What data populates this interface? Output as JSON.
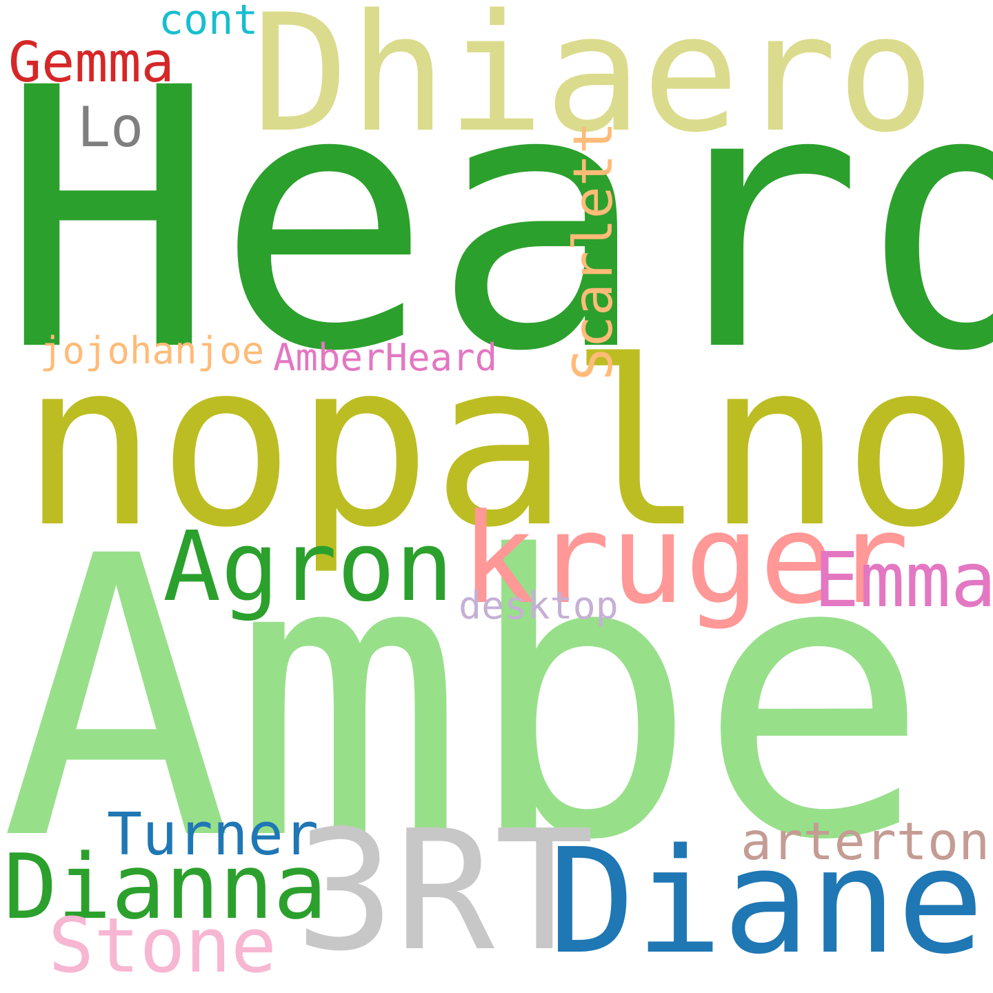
{
  "words": {
    "heard": {
      "text": "Heard",
      "color": "#2ca02c"
    },
    "amber": {
      "text": "Amber",
      "color": "#98df8a"
    },
    "nopalnop": {
      "text": "nopalnop",
      "color": "#bcbd22"
    },
    "dhiaero": {
      "text": "Dhiaero",
      "color": "#dbdb8d"
    },
    "kruger": {
      "text": "kruger",
      "color": "#ff9896"
    },
    "agron": {
      "text": "Agron",
      "color": "#2ca02c"
    },
    "diane": {
      "text": "Diane",
      "color": "#1f77b4"
    },
    "three_rt": {
      "text": "3RT",
      "color": "#c7c7c7"
    },
    "dianna": {
      "text": "Dianna",
      "color": "#2ca02c"
    },
    "stone": {
      "text": "Stone",
      "color": "#f7b6d2"
    },
    "turner": {
      "text": "Turner",
      "color": "#1f77b4"
    },
    "arterton": {
      "text": "arterton",
      "color": "#c49c94"
    },
    "emma": {
      "text": "Emma",
      "color": "#e377c2"
    },
    "desktop": {
      "text": "desktop",
      "color": "#c5b0d5"
    },
    "gemma": {
      "text": "Gemma",
      "color": "#d62728"
    },
    "cont": {
      "text": "cont",
      "color": "#17becf"
    },
    "lo": {
      "text": "Lo",
      "color": "#7f7f7f"
    },
    "jojohanjoe": {
      "text": "jojohanjoe",
      "color": "#ffbb78"
    },
    "amberheard": {
      "text": "AmberHeard",
      "color": "#e377c2"
    },
    "scarlett": {
      "text": "Scarlett",
      "color": "#ffbb78"
    }
  }
}
